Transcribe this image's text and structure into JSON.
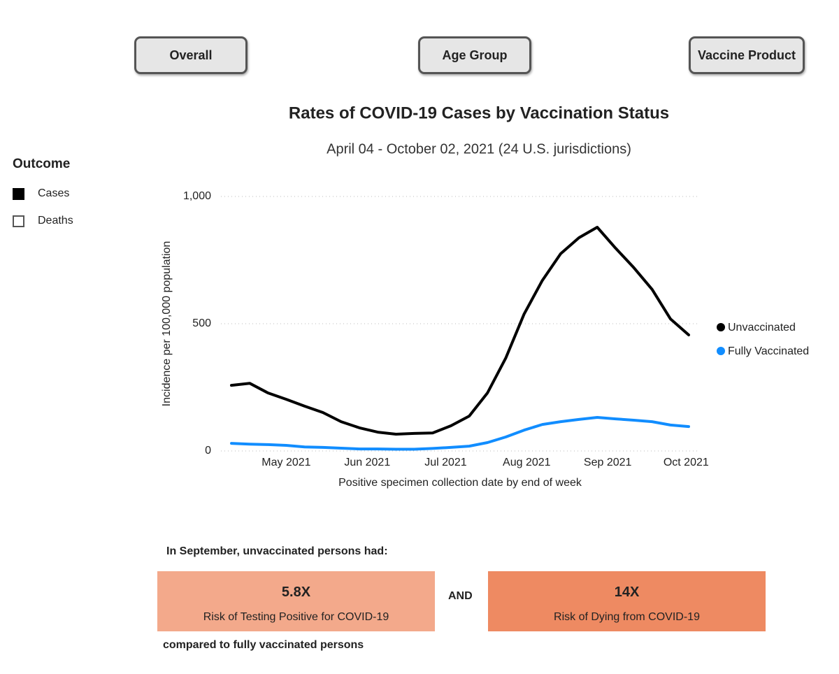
{
  "buttons": [
    "Overall",
    "Age Group",
    "Vaccine Product"
  ],
  "slicer": {
    "title": "Outcome",
    "items": [
      "Cases",
      "Deaths"
    ]
  },
  "chart_data": {
    "type": "line",
    "title": "Rates of COVID-19 Cases by Vaccination Status",
    "subtitle": "April 04 - October 02, 2021 (24 U.S. jurisdictions)",
    "x_label": "Positive specimen collection date by end of week",
    "y_label": "Incidence per 100,000 population",
    "x": [
      "2021-04-10",
      "2021-04-17",
      "2021-04-24",
      "2021-05-01",
      "2021-05-08",
      "2021-05-15",
      "2021-05-22",
      "2021-05-29",
      "2021-06-05",
      "2021-06-12",
      "2021-06-19",
      "2021-06-26",
      "2021-07-03",
      "2021-07-10",
      "2021-07-17",
      "2021-07-24",
      "2021-07-31",
      "2021-08-07",
      "2021-08-14",
      "2021-08-21",
      "2021-08-28",
      "2021-09-04",
      "2021-09-11",
      "2021-09-18",
      "2021-09-25",
      "2021-10-02"
    ],
    "series": [
      {
        "name": "Unvaccinated",
        "color": "#000000",
        "values": [
          258,
          266,
          228,
          203,
          176,
          151,
          115,
          91,
          74,
          66,
          69,
          71,
          99,
          137,
          228,
          365,
          538,
          670,
          775,
          838,
          879,
          797,
          720,
          635,
          519,
          456
        ]
      },
      {
        "name": "Fully Vaccinated",
        "color": "#118DFF",
        "values": [
          30,
          27,
          25,
          22,
          16,
          14,
          11,
          8,
          8,
          7,
          7,
          10,
          14,
          19,
          33,
          55,
          82,
          104,
          115,
          124,
          132,
          126,
          121,
          115,
          102,
          96
        ]
      }
    ],
    "xlim": [
      "2021-04-06",
      "2021-10-06"
    ],
    "xticks": [
      {
        "value": "2021-05-01",
        "label": "May 2021"
      },
      {
        "value": "2021-06-01",
        "label": "Jun 2021"
      },
      {
        "value": "2021-07-01",
        "label": "Jul 2021"
      },
      {
        "value": "2021-08-01",
        "label": "Aug 2021"
      },
      {
        "value": "2021-09-01",
        "label": "Sep 2021"
      },
      {
        "value": "2021-10-01",
        "label": "Oct 2021"
      }
    ],
    "ylim": [
      0,
      1000
    ],
    "yticks": [
      0,
      500,
      {
        "value": 1000,
        "label": "1,000"
      }
    ],
    "grid": true,
    "legend": "right"
  },
  "summary": {
    "intro": "In September, unvaccinated persons had:",
    "boxes": [
      {
        "value": "5.8X",
        "label": "Risk of Testing Positive for COVID-19",
        "color": "#F3A98B"
      },
      {
        "value": "14X",
        "label": "Risk of Dying from COVID-19",
        "color": "#EE8A62"
      }
    ],
    "connector": "AND",
    "footer": "compared to fully vaccinated persons"
  }
}
